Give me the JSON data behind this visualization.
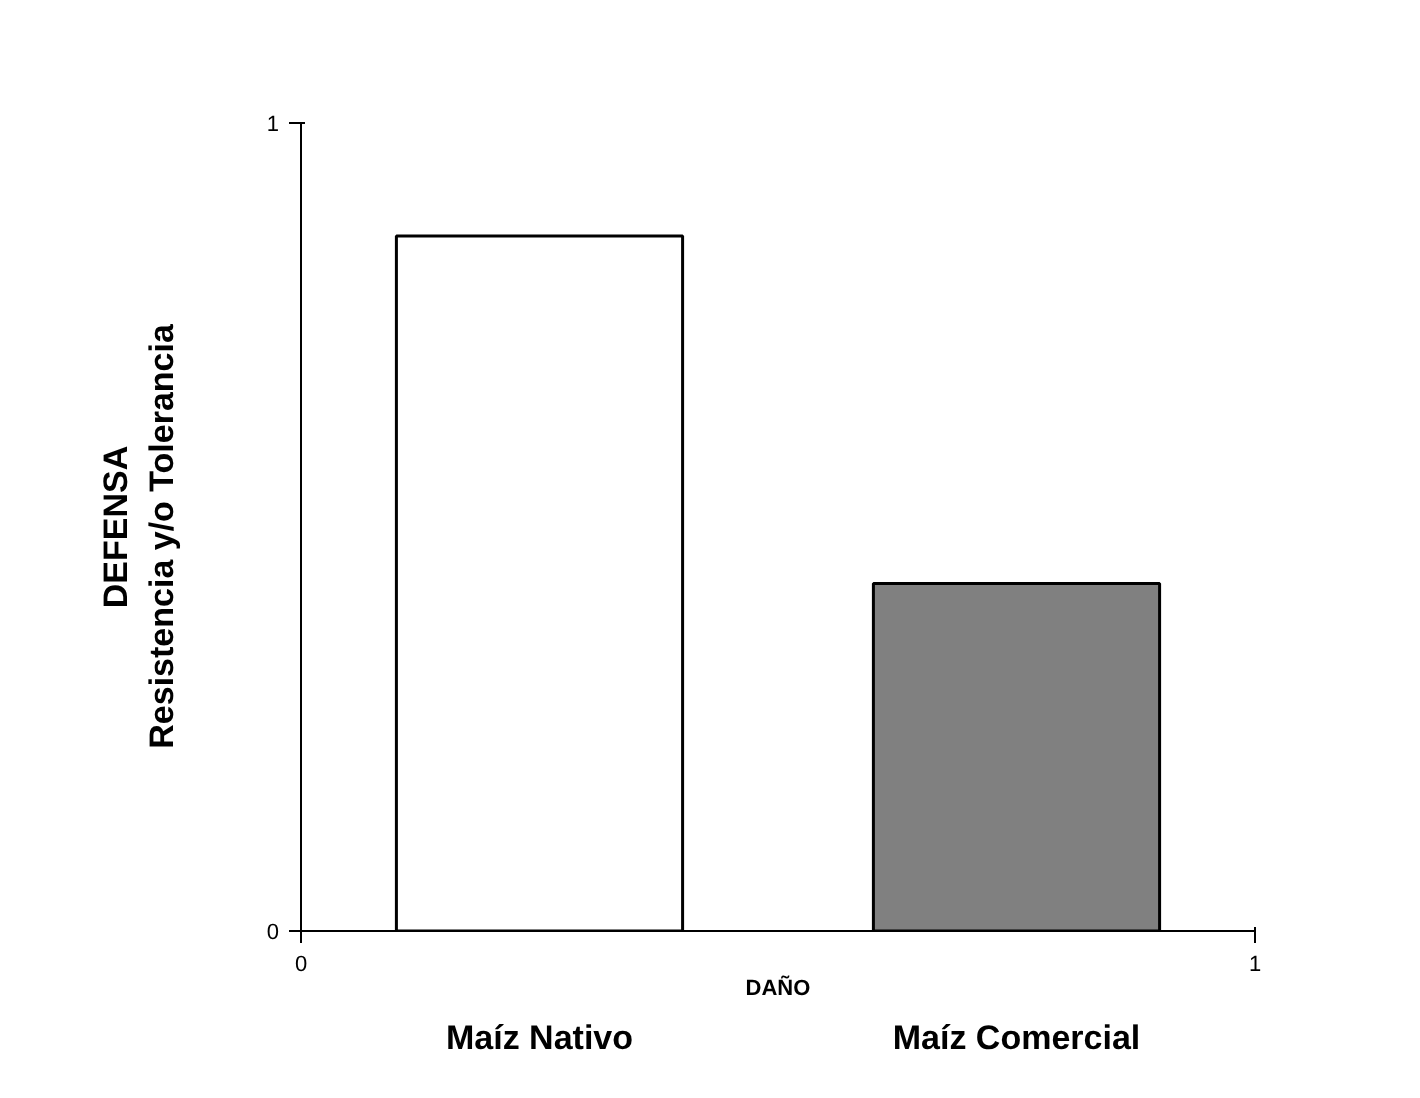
{
  "chart_data": {
    "type": "bar",
    "categories": [
      "Maíz Nativo",
      "Maíz Comercial"
    ],
    "values": [
      0.86,
      0.43
    ],
    "colors": [
      "#ffffff",
      "#808080"
    ],
    "xlabel": "DAÑO",
    "ylabel": "DEFENSA\nResistencia  y/o  Tolerancia",
    "ylim": [
      0,
      1
    ],
    "yticks": [
      0,
      1
    ],
    "annotations": [
      "0",
      "1"
    ]
  }
}
